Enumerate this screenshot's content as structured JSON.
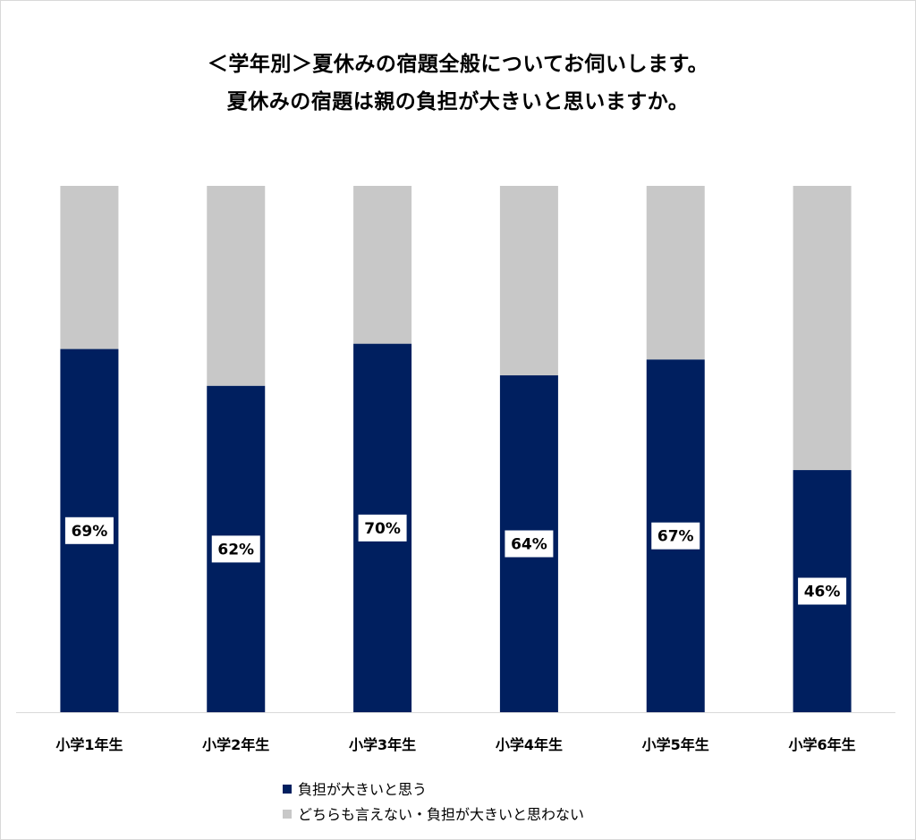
{
  "title_line1": "＜学年別＞夏休みの宿題全般についてお伺いします。",
  "title_line2": "夏休みの宿題は親の負担が大きいと思いますか。",
  "colors": {
    "yes": "#001f5f",
    "no": "#c8c8c8",
    "axis": "#d9d9d9"
  },
  "chart_data": {
    "type": "bar",
    "stacked": true,
    "categories": [
      "小学1年生",
      "小学2年生",
      "小学3年生",
      "小学4年生",
      "小学5年生",
      "小学6年生"
    ],
    "series": [
      {
        "name": "負担が大きいと思う",
        "values": [
          69,
          62,
          70,
          64,
          67,
          46
        ]
      },
      {
        "name": "どちらも言えない・負担が大きいと思わない",
        "values": [
          31,
          38,
          30,
          36,
          33,
          54
        ]
      }
    ],
    "data_labels": [
      "69%",
      "62%",
      "70%",
      "64%",
      "67%",
      "46%"
    ],
    "ylim": [
      0,
      100
    ],
    "legend": "bottom",
    "grid": false
  }
}
